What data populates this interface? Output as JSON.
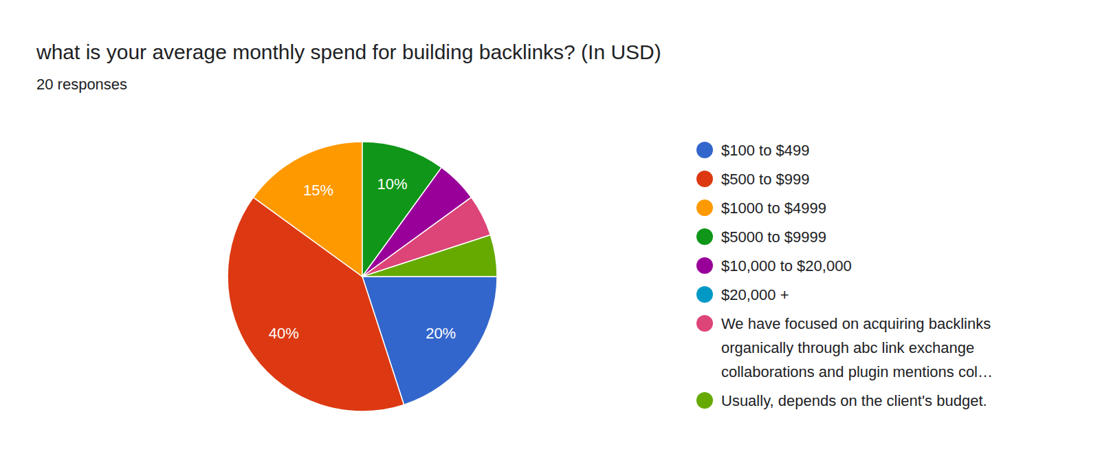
{
  "chart_data": {
    "type": "pie",
    "title": "what is your average monthly spend for building backlinks? (In USD)",
    "subtitle": "20 responses",
    "categories": [
      "$100 to $499",
      "$500 to $999",
      "$1000 to $4999",
      "$5000 to $9999",
      "$10,000 to $20,000",
      "$20,000 +",
      "We have focused on acquiring backlinks organically through abc link exchange collaborations and plugin mentions col…",
      "Usually, depends on the client's budget."
    ],
    "values": [
      20,
      40,
      15,
      10,
      5,
      0,
      5,
      5
    ],
    "value_labels": [
      "20%",
      "40%",
      "15%",
      "10%",
      null,
      null,
      null,
      null
    ],
    "colors": [
      "#3366cc",
      "#dc3912",
      "#ff9900",
      "#109618",
      "#990099",
      "#0099c6",
      "#dd4477",
      "#66aa00"
    ],
    "legend": "right",
    "data_labels": true
  }
}
